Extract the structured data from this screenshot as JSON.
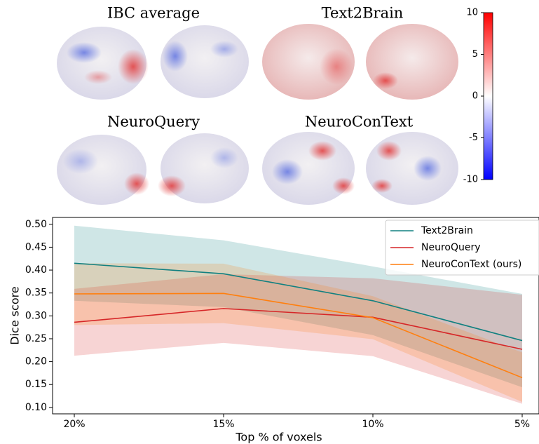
{
  "chart_data": [
    {
      "type": "colorbar",
      "panel_titles": [
        "IBC average",
        "Text2Brain",
        "NeuroQuery",
        "NeuroConText"
      ],
      "colors": [
        "#0000ff",
        "#ffffff",
        "#ff0000"
      ],
      "ylim": [
        -10,
        10
      ],
      "yticks": [
        10,
        5,
        0,
        -5,
        -10
      ]
    },
    {
      "type": "line",
      "xlabel": "Top % of voxels",
      "ylabel": "Dice score",
      "categories": [
        "20%",
        "15%",
        "10%",
        "5%"
      ],
      "ylim": [
        0.086,
        0.515
      ],
      "yticks": [
        {
          "value": 0.1,
          "label": "0.10"
        },
        0.15,
        {
          "value": 0.2,
          "label": "0.20"
        },
        0.25,
        {
          "value": 0.3,
          "label": "0.30"
        },
        0.35,
        {
          "value": 0.4,
          "label": "0.40"
        },
        0.45,
        {
          "value": 0.5,
          "label": "0.50"
        }
      ],
      "legend": "upper right",
      "series": [
        {
          "name": "Text2Brain",
          "color": "#118080",
          "values": [
            0.415,
            0.392,
            0.333,
            0.246
          ],
          "lower": [
            0.333,
            0.319,
            0.258,
            0.144
          ],
          "upper": [
            0.497,
            0.465,
            0.408,
            0.348
          ]
        },
        {
          "name": "NeuroQuery",
          "color": "#d62728",
          "values": [
            0.286,
            0.316,
            0.297,
            0.227
          ],
          "lower": [
            0.213,
            0.241,
            0.212,
            0.108
          ],
          "upper": [
            0.359,
            0.391,
            0.382,
            0.346
          ]
        },
        {
          "name": "NeuroConText (ours)",
          "color": "#ff7f0e",
          "values": [
            0.348,
            0.349,
            0.296,
            0.165
          ],
          "lower": [
            0.28,
            0.284,
            0.249,
            0.112
          ],
          "upper": [
            0.415,
            0.414,
            0.343,
            0.22
          ]
        }
      ]
    }
  ]
}
